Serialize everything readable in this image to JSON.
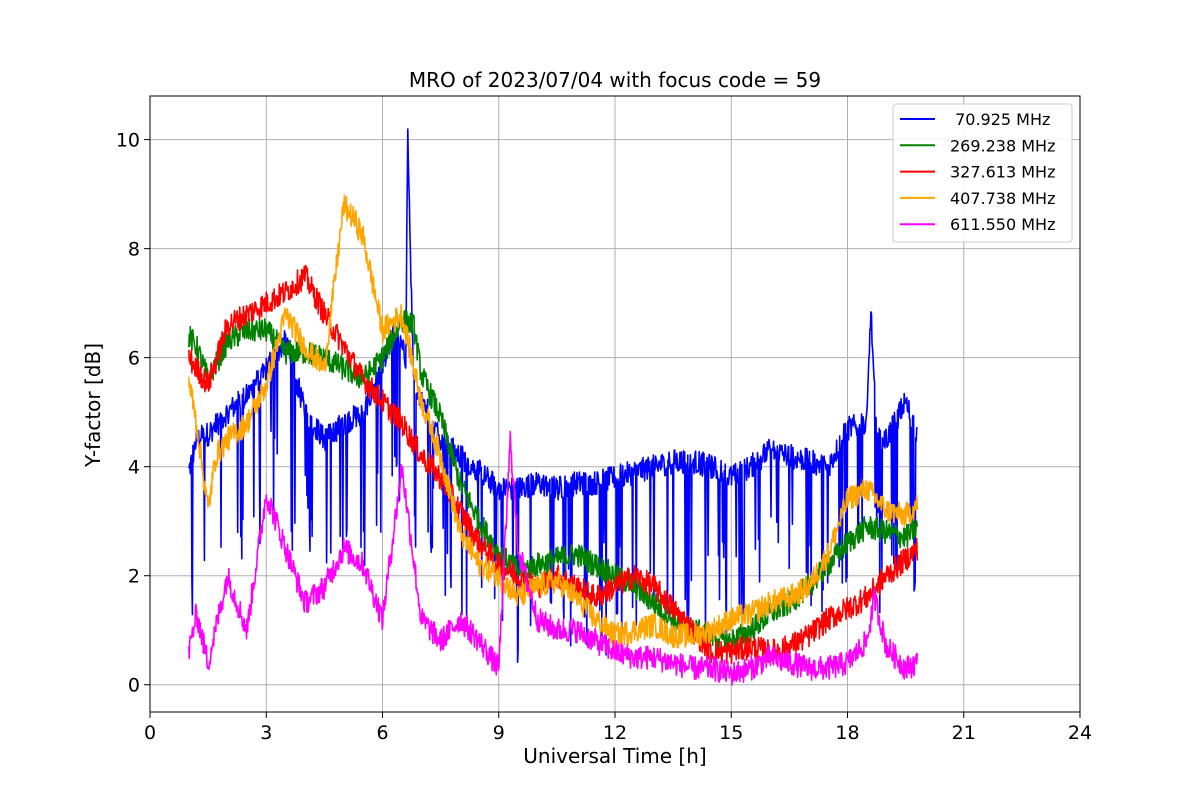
{
  "chart_data": {
    "type": "line",
    "title": "MRO of 2023/07/04 with focus code = 59",
    "xlabel": "Universal Time [h]",
    "ylabel": "Y-factor [dB]",
    "xlim": [
      0,
      24
    ],
    "ylim": [
      -0.5,
      10.8
    ],
    "xticks": [
      0,
      3,
      6,
      9,
      12,
      15,
      18,
      21,
      24
    ],
    "yticks": [
      0,
      2,
      4,
      6,
      8,
      10
    ],
    "grid": true,
    "legend_position": "top-right",
    "series": [
      {
        "name": " 70.925 MHz",
        "color": "#0000ff",
        "x": [
          1.0,
          1.2,
          1.5,
          2.0,
          2.5,
          3.0,
          3.5,
          4.0,
          4.5,
          5.0,
          5.5,
          6.0,
          6.3,
          6.6,
          6.65,
          6.8,
          7.0,
          7.5,
          8.0,
          8.5,
          9.0,
          9.5,
          10.0,
          10.5,
          11.0,
          11.5,
          12.0,
          12.5,
          13.0,
          13.5,
          14.0,
          14.5,
          15.0,
          15.5,
          16.0,
          16.5,
          17.0,
          17.5,
          18.0,
          18.5,
          18.6,
          18.75,
          19.0,
          19.5,
          19.8
        ],
        "y": [
          3.9,
          4.5,
          4.6,
          5.0,
          5.3,
          5.8,
          6.3,
          5.0,
          4.5,
          4.8,
          5.0,
          5.8,
          6.5,
          6.0,
          10.2,
          5.5,
          5.3,
          4.5,
          4.2,
          3.9,
          3.6,
          3.6,
          3.7,
          3.6,
          3.7,
          3.7,
          3.8,
          3.9,
          4.0,
          4.1,
          4.1,
          4.0,
          3.8,
          4.0,
          4.3,
          4.2,
          4.1,
          4.0,
          4.7,
          4.8,
          6.9,
          4.5,
          4.5,
          5.2,
          4.6
        ],
        "dips": true
      },
      {
        "name": "269.238 MHz",
        "color": "#008000",
        "x": [
          1.0,
          1.2,
          1.5,
          2.0,
          2.5,
          3.0,
          3.5,
          4.0,
          4.5,
          5.0,
          5.5,
          6.0,
          6.5,
          6.8,
          7.0,
          7.5,
          8.0,
          8.5,
          9.0,
          9.5,
          10.0,
          10.5,
          11.0,
          11.5,
          12.0,
          12.5,
          13.0,
          13.5,
          14.0,
          14.5,
          15.0,
          15.5,
          16.0,
          16.5,
          17.0,
          17.5,
          18.0,
          18.5,
          19.0,
          19.5,
          19.8
        ],
        "y": [
          6.4,
          6.2,
          5.6,
          6.3,
          6.5,
          6.5,
          6.1,
          6.1,
          6.0,
          5.8,
          5.6,
          6.0,
          6.7,
          6.6,
          5.7,
          4.9,
          3.7,
          3.0,
          2.4,
          2.1,
          2.2,
          2.3,
          2.4,
          2.2,
          2.0,
          1.8,
          1.5,
          1.2,
          1.0,
          0.9,
          0.8,
          1.0,
          1.3,
          1.5,
          1.8,
          2.2,
          2.6,
          2.9,
          2.8,
          2.7,
          2.9
        ]
      },
      {
        "name": "327.613 MHz",
        "color": "#ff0000",
        "x": [
          1.0,
          1.2,
          1.5,
          2.0,
          2.5,
          3.0,
          3.5,
          4.0,
          4.5,
          5.0,
          5.5,
          6.0,
          6.5,
          7.0,
          7.5,
          8.0,
          8.5,
          9.0,
          9.5,
          10.0,
          10.5,
          11.0,
          11.5,
          12.0,
          12.5,
          13.0,
          13.5,
          14.0,
          14.5,
          15.0,
          15.5,
          16.0,
          16.5,
          17.0,
          17.5,
          18.0,
          18.5,
          19.0,
          19.5,
          19.8
        ],
        "y": [
          6.0,
          5.8,
          5.5,
          6.6,
          6.8,
          7.0,
          7.2,
          7.5,
          6.8,
          6.2,
          5.6,
          5.2,
          4.8,
          4.2,
          3.8,
          3.2,
          2.6,
          2.2,
          2.0,
          1.8,
          2.0,
          1.8,
          1.6,
          1.8,
          2.0,
          1.8,
          1.4,
          1.0,
          0.6,
          0.6,
          0.7,
          0.6,
          0.7,
          0.9,
          1.2,
          1.4,
          1.6,
          2.0,
          2.3,
          2.5
        ]
      },
      {
        "name": "407.738 MHz",
        "color": "#ffa500",
        "x": [
          1.0,
          1.2,
          1.5,
          1.7,
          2.0,
          2.5,
          3.0,
          3.5,
          4.0,
          4.5,
          5.0,
          5.3,
          5.5,
          6.0,
          6.5,
          7.0,
          7.5,
          8.0,
          8.5,
          9.0,
          9.5,
          10.0,
          10.5,
          11.0,
          11.5,
          12.0,
          12.5,
          13.0,
          13.5,
          14.0,
          14.5,
          15.0,
          15.5,
          16.0,
          16.5,
          17.0,
          17.5,
          18.0,
          18.5,
          19.0,
          19.5,
          19.8
        ],
        "y": [
          5.6,
          4.8,
          3.2,
          4.2,
          4.5,
          4.8,
          5.5,
          6.8,
          6.2,
          5.8,
          8.8,
          8.5,
          8.2,
          6.5,
          6.8,
          5.2,
          4.2,
          2.8,
          2.2,
          2.0,
          1.6,
          1.8,
          1.9,
          1.6,
          1.2,
          0.9,
          1.0,
          1.1,
          0.9,
          0.9,
          1.0,
          1.2,
          1.3,
          1.5,
          1.6,
          1.8,
          2.4,
          3.4,
          3.6,
          3.2,
          3.1,
          3.3
        ]
      },
      {
        "name": "611.550 MHz",
        "color": "#ff00ff",
        "x": [
          1.0,
          1.2,
          1.5,
          2.0,
          2.5,
          3.0,
          3.5,
          4.0,
          4.5,
          5.0,
          5.5,
          6.0,
          6.5,
          7.0,
          7.5,
          8.0,
          8.5,
          9.0,
          9.3,
          9.5,
          10.0,
          10.5,
          11.0,
          11.5,
          12.0,
          12.5,
          13.0,
          13.5,
          14.0,
          14.5,
          15.0,
          15.5,
          16.0,
          16.5,
          17.0,
          17.5,
          18.0,
          18.5,
          18.7,
          19.0,
          19.5,
          19.8
        ],
        "y": [
          0.6,
          1.3,
          0.4,
          2.0,
          1.0,
          3.5,
          2.5,
          1.5,
          1.8,
          2.5,
          2.2,
          1.2,
          4.0,
          1.2,
          0.8,
          1.2,
          0.8,
          0.3,
          4.5,
          2.5,
          1.2,
          1.0,
          1.0,
          0.8,
          0.6,
          0.5,
          0.5,
          0.4,
          0.3,
          0.3,
          0.2,
          0.3,
          0.5,
          0.4,
          0.3,
          0.3,
          0.4,
          0.8,
          1.6,
          0.7,
          0.3,
          0.4
        ]
      }
    ]
  }
}
